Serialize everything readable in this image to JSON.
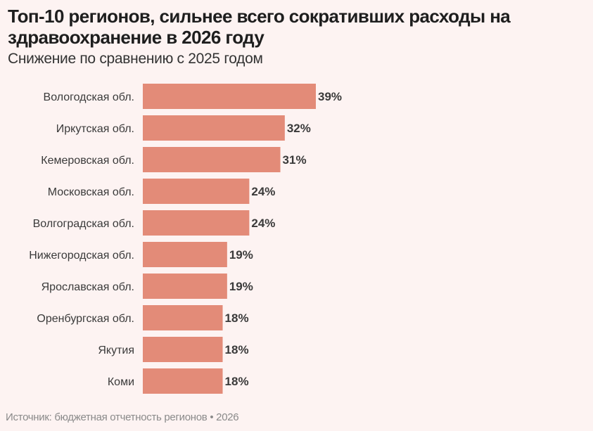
{
  "title": "Топ-10 регионов, сильнее всего сокративших расходы на здравоохранение в 2026 году",
  "subtitle": "Снижение по сравнению с 2025 годом",
  "source": "Источник: бюджетная отчетность регионов • 2026",
  "chart_data": {
    "type": "bar",
    "orientation": "horizontal",
    "title": "Топ-10 регионов, сильнее всего сокративших расходы на здравоохранение в 2026 году",
    "subtitle": "Снижение по сравнению с 2025 годом",
    "categories": [
      "Вологодская обл.",
      "Иркутская обл.",
      "Кемеровская обл.",
      "Московская обл.",
      "Волгоградская обл.",
      "Нижегородская обл.",
      "Ярославская обл.",
      "Оренбургская обл.",
      "Якутия",
      "Коми"
    ],
    "values": [
      39,
      32,
      31,
      24,
      24,
      19,
      19,
      18,
      18,
      18
    ],
    "labels": [
      "39%",
      "32%",
      "31%",
      "24%",
      "24%",
      "19%",
      "19%",
      "18%",
      "18%",
      "18%"
    ],
    "unit": "%",
    "xlim": [
      0,
      39
    ],
    "grid": false,
    "bar_color": "#e38b78",
    "label_color": "#3a3a3a"
  }
}
